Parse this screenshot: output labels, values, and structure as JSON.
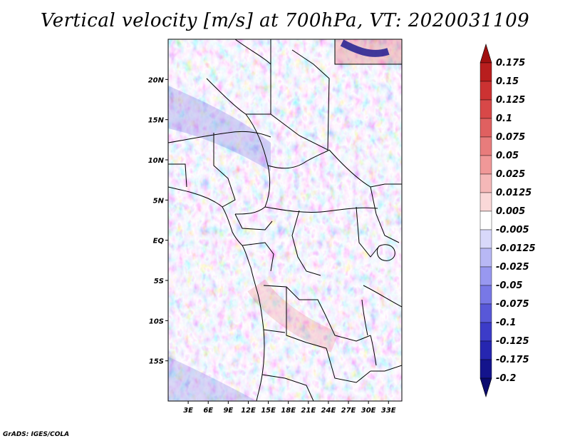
{
  "title": "Vertical velocity [m/s] at 700hPa, VT: 2020031109",
  "credit": "GrADS: IGES/COLA",
  "map": {
    "lon_range": [
      0,
      35
    ],
    "lat_range": [
      -20,
      25
    ],
    "lat_labels": [
      "20N",
      "15N",
      "10N",
      "5N",
      "EQ",
      "5S",
      "10S",
      "15S"
    ],
    "lat_values": [
      20,
      15,
      10,
      5,
      0,
      -5,
      -10,
      -15
    ],
    "lon_labels": [
      "3E",
      "6E",
      "9E",
      "12E",
      "15E",
      "18E",
      "21E",
      "24E",
      "27E",
      "30E",
      "33E"
    ],
    "lon_values": [
      3,
      6,
      9,
      12,
      15,
      18,
      21,
      24,
      27,
      30,
      33
    ]
  },
  "colorbar": {
    "labels": [
      "0.175",
      "0.15",
      "0.125",
      "0.1",
      "0.075",
      "0.05",
      "0.025",
      "0.0125",
      "0.005",
      "-0.005",
      "-0.0125",
      "-0.025",
      "-0.05",
      "-0.075",
      "-0.1",
      "-0.125",
      "-0.175",
      "-0.2"
    ],
    "colors": [
      "#a01010",
      "#b81e1e",
      "#cc3232",
      "#d84848",
      "#e06060",
      "#e87c7c",
      "#f09898",
      "#f5b8b8",
      "#fad8d8",
      "#ffffff",
      "#d8d8fa",
      "#b8b8f5",
      "#9898f0",
      "#7878e6",
      "#5858d8",
      "#3c3cc8",
      "#2626b0",
      "#14148c",
      "#0a0a6e"
    ]
  }
}
